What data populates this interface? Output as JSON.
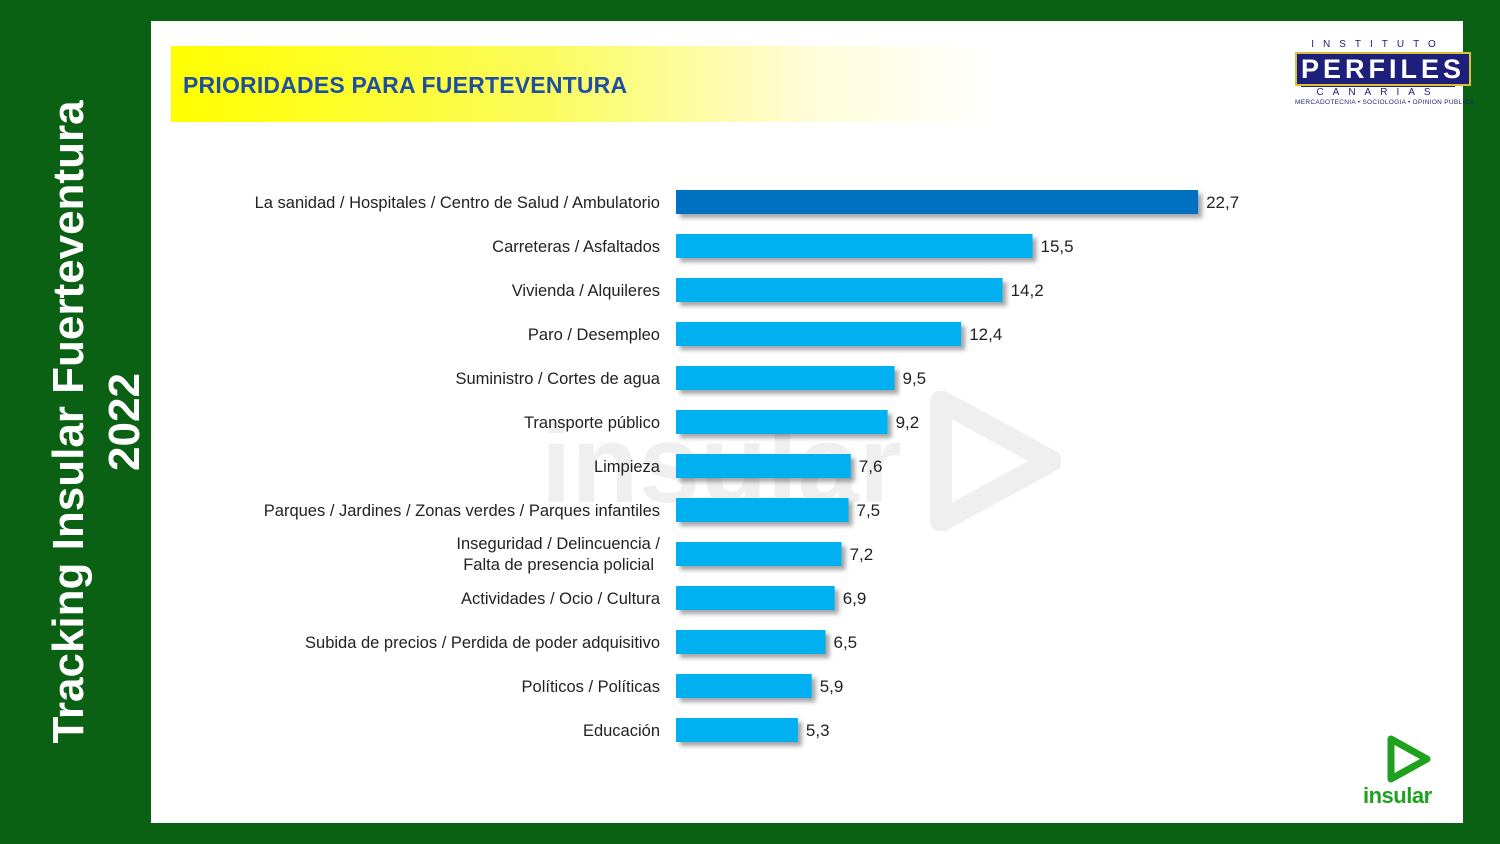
{
  "side_title": {
    "line1": "Tracking Insular Fuerteventura",
    "line2": "2022"
  },
  "header": {
    "title": "PRIORIDADES PARA FUERTEVENTURA"
  },
  "logos": {
    "perfiles": {
      "top": "INSTITUTO",
      "name": "PERFILES",
      "bottom": "CANARIAS",
      "tagline": "MERCADOTECNIA • SOCIOLOGIA • OPINION PUBLICA"
    },
    "insular": {
      "name": "insular",
      "icon": "play-triangle-icon"
    }
  },
  "colors": {
    "background": "#0b6113",
    "highlight_bar": "#0070c0",
    "bar": "#00b0f0",
    "title": "#1f4fa0"
  },
  "chart_data": {
    "type": "bar",
    "orientation": "horizontal",
    "title": "PRIORIDADES PARA FUERTEVENTURA",
    "xlabel": "",
    "ylabel": "",
    "xlim": [
      0,
      40
    ],
    "grid": false,
    "legend": "none",
    "categories": [
      "La sanidad / Hospitales / Centro de Salud / Ambulatorio",
      "Carreteras / Asfaltados",
      "Vivienda / Alquileres",
      "Paro / Desempleo",
      "Suministro / Cortes de agua",
      "Transporte público",
      "Limpieza",
      "Parques / Jardines / Zonas verdes / Parques infantiles",
      "Inseguridad / Delincuencia / \nFalta de presencia policial",
      "Actividades / Ocio / Cultura",
      "Subida de precios / Perdida de poder adquisitivo",
      "Políticos / Políticas",
      "Educación"
    ],
    "values": [
      22.7,
      15.5,
      14.2,
      12.4,
      9.5,
      9.2,
      7.6,
      7.5,
      7.2,
      6.9,
      6.5,
      5.9,
      5.3
    ],
    "data_labels": [
      "22,7",
      "15,5",
      "14,2",
      "12,4",
      "9,5",
      "9,2",
      "7,6",
      "7,5",
      "7,2",
      "6,9",
      "6,5",
      "5,9",
      "5,3"
    ],
    "highlight_index": 0
  }
}
